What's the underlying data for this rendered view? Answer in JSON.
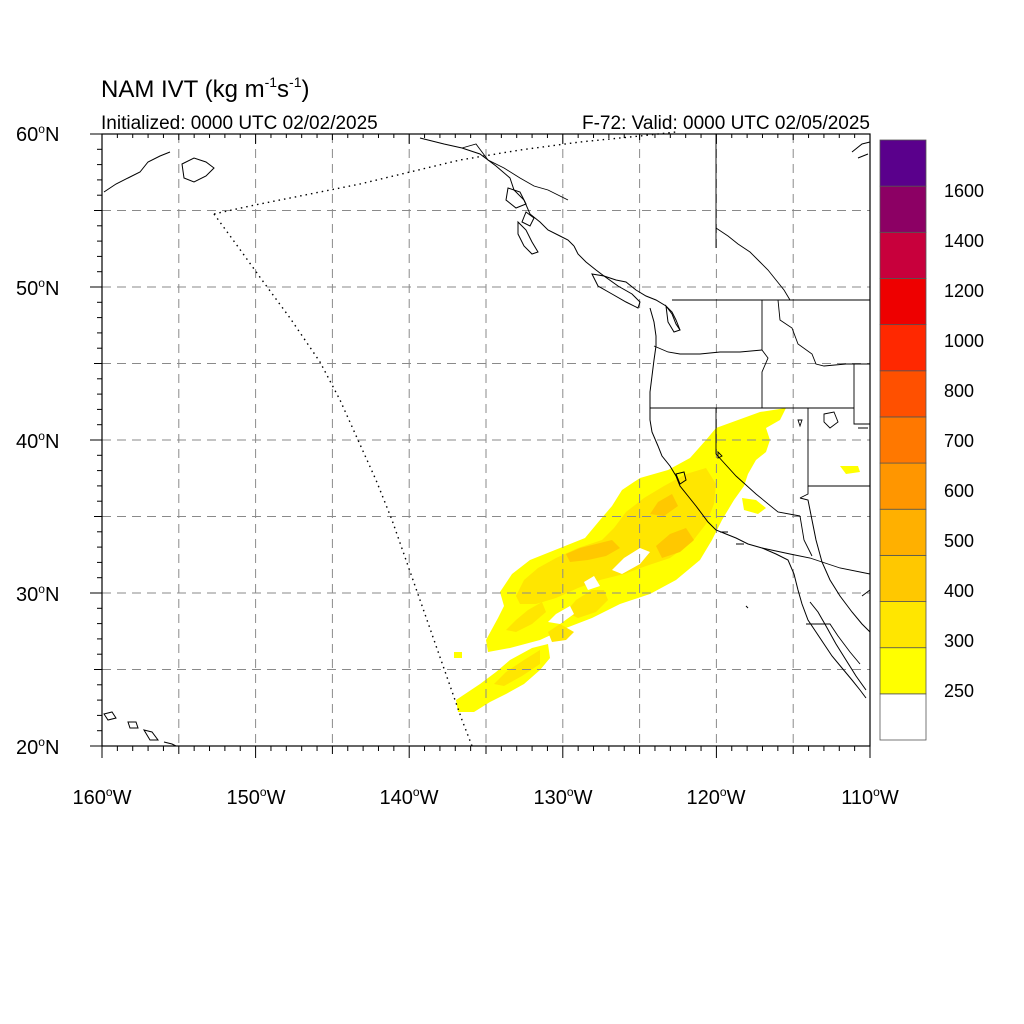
{
  "title": {
    "main": "NAM IVT (kg m",
    "exp1": "-1",
    "mid": "s",
    "exp2": "-1",
    "close": ")"
  },
  "initialized": "Initialized: 0000 UTC 02/02/2025",
  "valid": "F-72: Valid: 0000 UTC 02/05/2025",
  "lat_ticks": [
    {
      "num": "60",
      "hemi": "N"
    },
    {
      "num": "50",
      "hemi": "N"
    },
    {
      "num": "40",
      "hemi": "N"
    },
    {
      "num": "30",
      "hemi": "N"
    },
    {
      "num": "20",
      "hemi": "N"
    }
  ],
  "lon_ticks": [
    {
      "num": "160",
      "hemi": "W"
    },
    {
      "num": "150",
      "hemi": "W"
    },
    {
      "num": "140",
      "hemi": "W"
    },
    {
      "num": "130",
      "hemi": "W"
    },
    {
      "num": "120",
      "hemi": "W"
    },
    {
      "num": "110",
      "hemi": "W"
    }
  ],
  "map_extent": {
    "lon": [
      -160,
      -110
    ],
    "lat": [
      20,
      60
    ]
  },
  "grid": {
    "lon_step": 5,
    "lat_step": 5,
    "style": "dashed"
  },
  "colorbar": {
    "labels": [
      "250",
      "300",
      "400",
      "500",
      "600",
      "700",
      "800",
      "1000",
      "1200",
      "1400",
      "1600"
    ],
    "colors": [
      "#ffffff",
      "#ffff00",
      "#ffe600",
      "#ffc800",
      "#ffb000",
      "#ff9600",
      "#ff7800",
      "#ff5000",
      "#ff2800",
      "#ee0000",
      "#c8003c",
      "#8c0064",
      "#5a008c"
    ]
  }
}
